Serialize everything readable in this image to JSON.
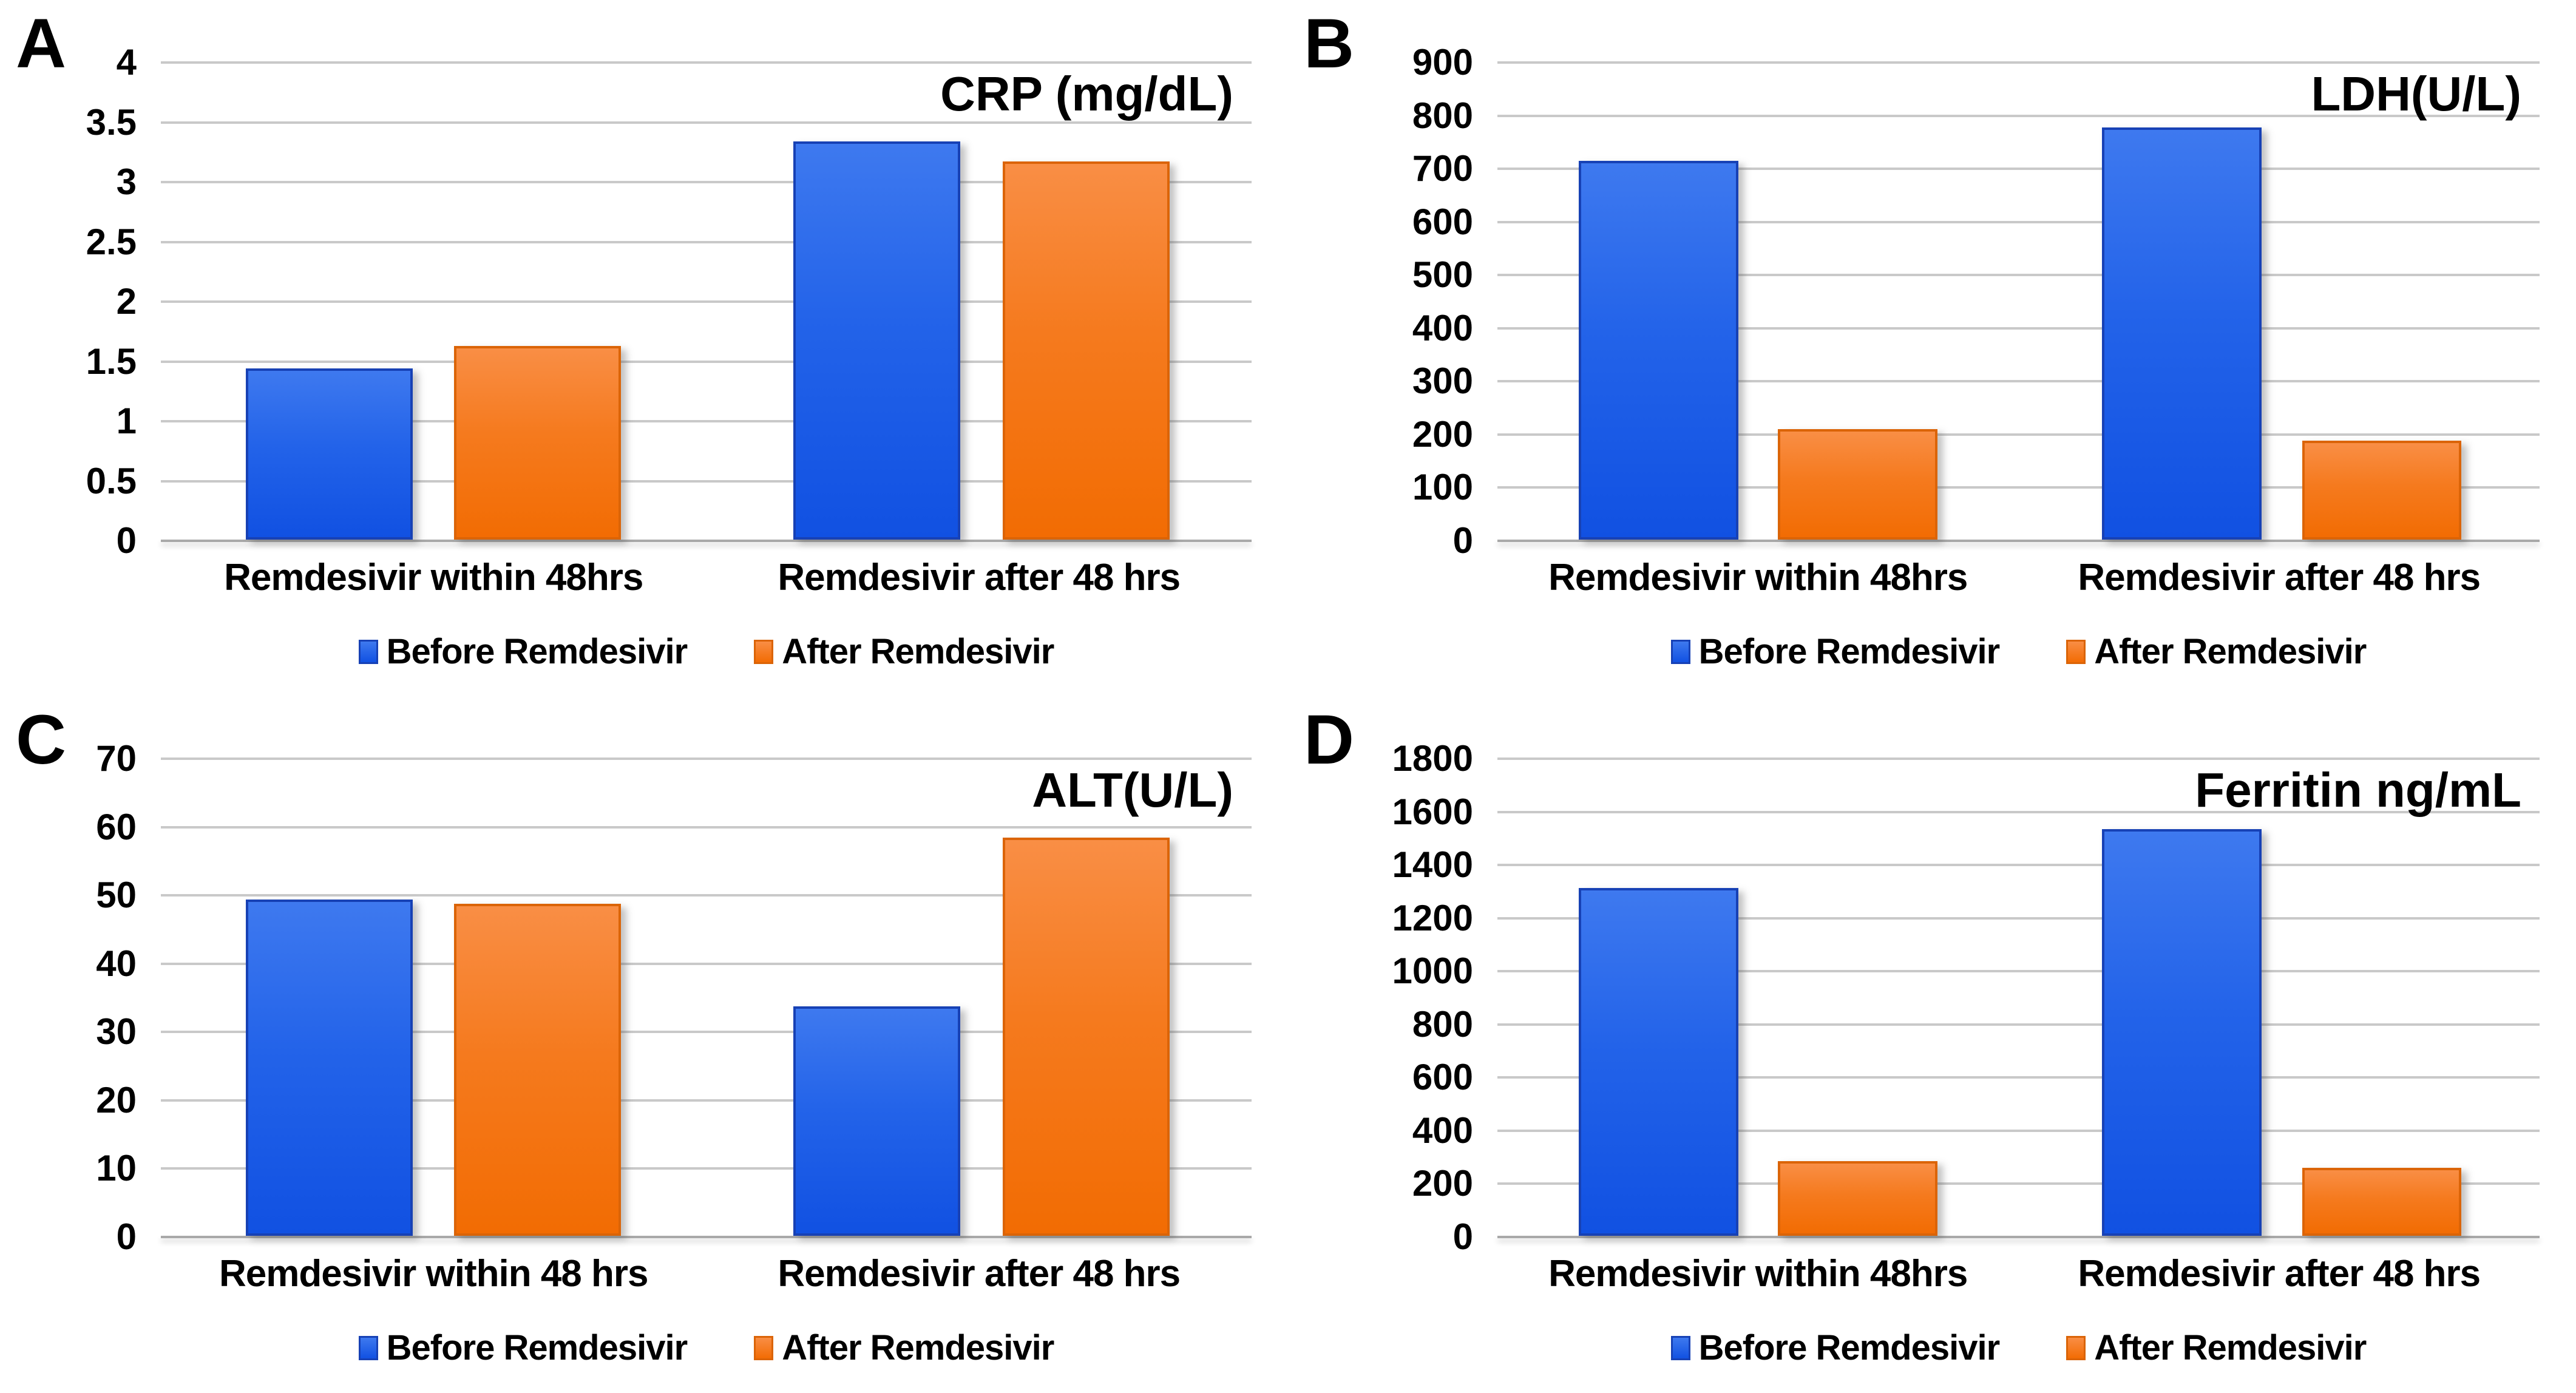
{
  "figure": {
    "legend": {
      "before_label": "Before Remdesivir",
      "after_label": "After Remdesivir"
    },
    "colors": {
      "before_top": "#3e79ef",
      "before_bottom": "#1151e2",
      "before_border": "#1741b5",
      "after_top": "#f98e45",
      "after_bottom": "#f26c03",
      "after_border": "#db6407",
      "gridline": "#c9c9c9",
      "baseline": "#a9a9a9",
      "text": "#000000",
      "background": "#ffffff"
    }
  },
  "chart_data": [
    {
      "panel": "A",
      "type": "bar",
      "title": "CRP (mg/dL)",
      "ylim": [
        0,
        4
      ],
      "ystep": 0.5,
      "yticks": [
        "4",
        "3.5",
        "3",
        "2.5",
        "2",
        "1.5",
        "1",
        "0.5",
        "0"
      ],
      "categories": [
        "Remdesivir within 48hrs",
        "Remdesivir after 48 hrs"
      ],
      "series": [
        {
          "name": "Before Remdesivir",
          "values": [
            1.43,
            3.33
          ]
        },
        {
          "name": "After Remdesivir",
          "values": [
            1.62,
            3.16
          ]
        }
      ],
      "grid": true,
      "legend_position": "bottom"
    },
    {
      "panel": "B",
      "type": "bar",
      "title": "LDH(U/L)",
      "ylim": [
        0,
        900
      ],
      "ystep": 100,
      "yticks": [
        "900",
        "800",
        "700",
        "600",
        "500",
        "400",
        "300",
        "200",
        "100",
        "0"
      ],
      "categories": [
        "Remdesivir within 48hrs",
        "Remdesivir after 48 hrs"
      ],
      "series": [
        {
          "name": "Before Remdesivir",
          "values": [
            713,
            775
          ]
        },
        {
          "name": "After Remdesivir",
          "values": [
            208,
            186
          ]
        }
      ],
      "grid": true,
      "legend_position": "bottom"
    },
    {
      "panel": "C",
      "type": "bar",
      "title": "ALT(U/L)",
      "ylim": [
        0,
        70
      ],
      "ystep": 10,
      "yticks": [
        "70",
        "60",
        "50",
        "40",
        "30",
        "20",
        "10",
        "0"
      ],
      "categories": [
        "Remdesivir within 48 hrs",
        "Remdesivir after 48 hrs"
      ],
      "series": [
        {
          "name": "Before Remdesivir",
          "values": [
            49.2,
            33.6
          ]
        },
        {
          "name": "After Remdesivir",
          "values": [
            48.6,
            58.3
          ]
        }
      ],
      "grid": true,
      "legend_position": "bottom"
    },
    {
      "panel": "D",
      "type": "bar",
      "title": "Ferritin ng/mL",
      "ylim": [
        0,
        1800
      ],
      "ystep": 200,
      "yticks": [
        "1800",
        "1600",
        "1400",
        "1200",
        "1000",
        "800",
        "600",
        "400",
        "200",
        "0"
      ],
      "categories": [
        "Remdesivir within 48hrs",
        "Remdesivir after 48 hrs"
      ],
      "series": [
        {
          "name": "Before Remdesivir",
          "values": [
            1310,
            1530
          ]
        },
        {
          "name": "After Remdesivir",
          "values": [
            280,
            255
          ]
        }
      ],
      "grid": true,
      "legend_position": "bottom"
    }
  ]
}
